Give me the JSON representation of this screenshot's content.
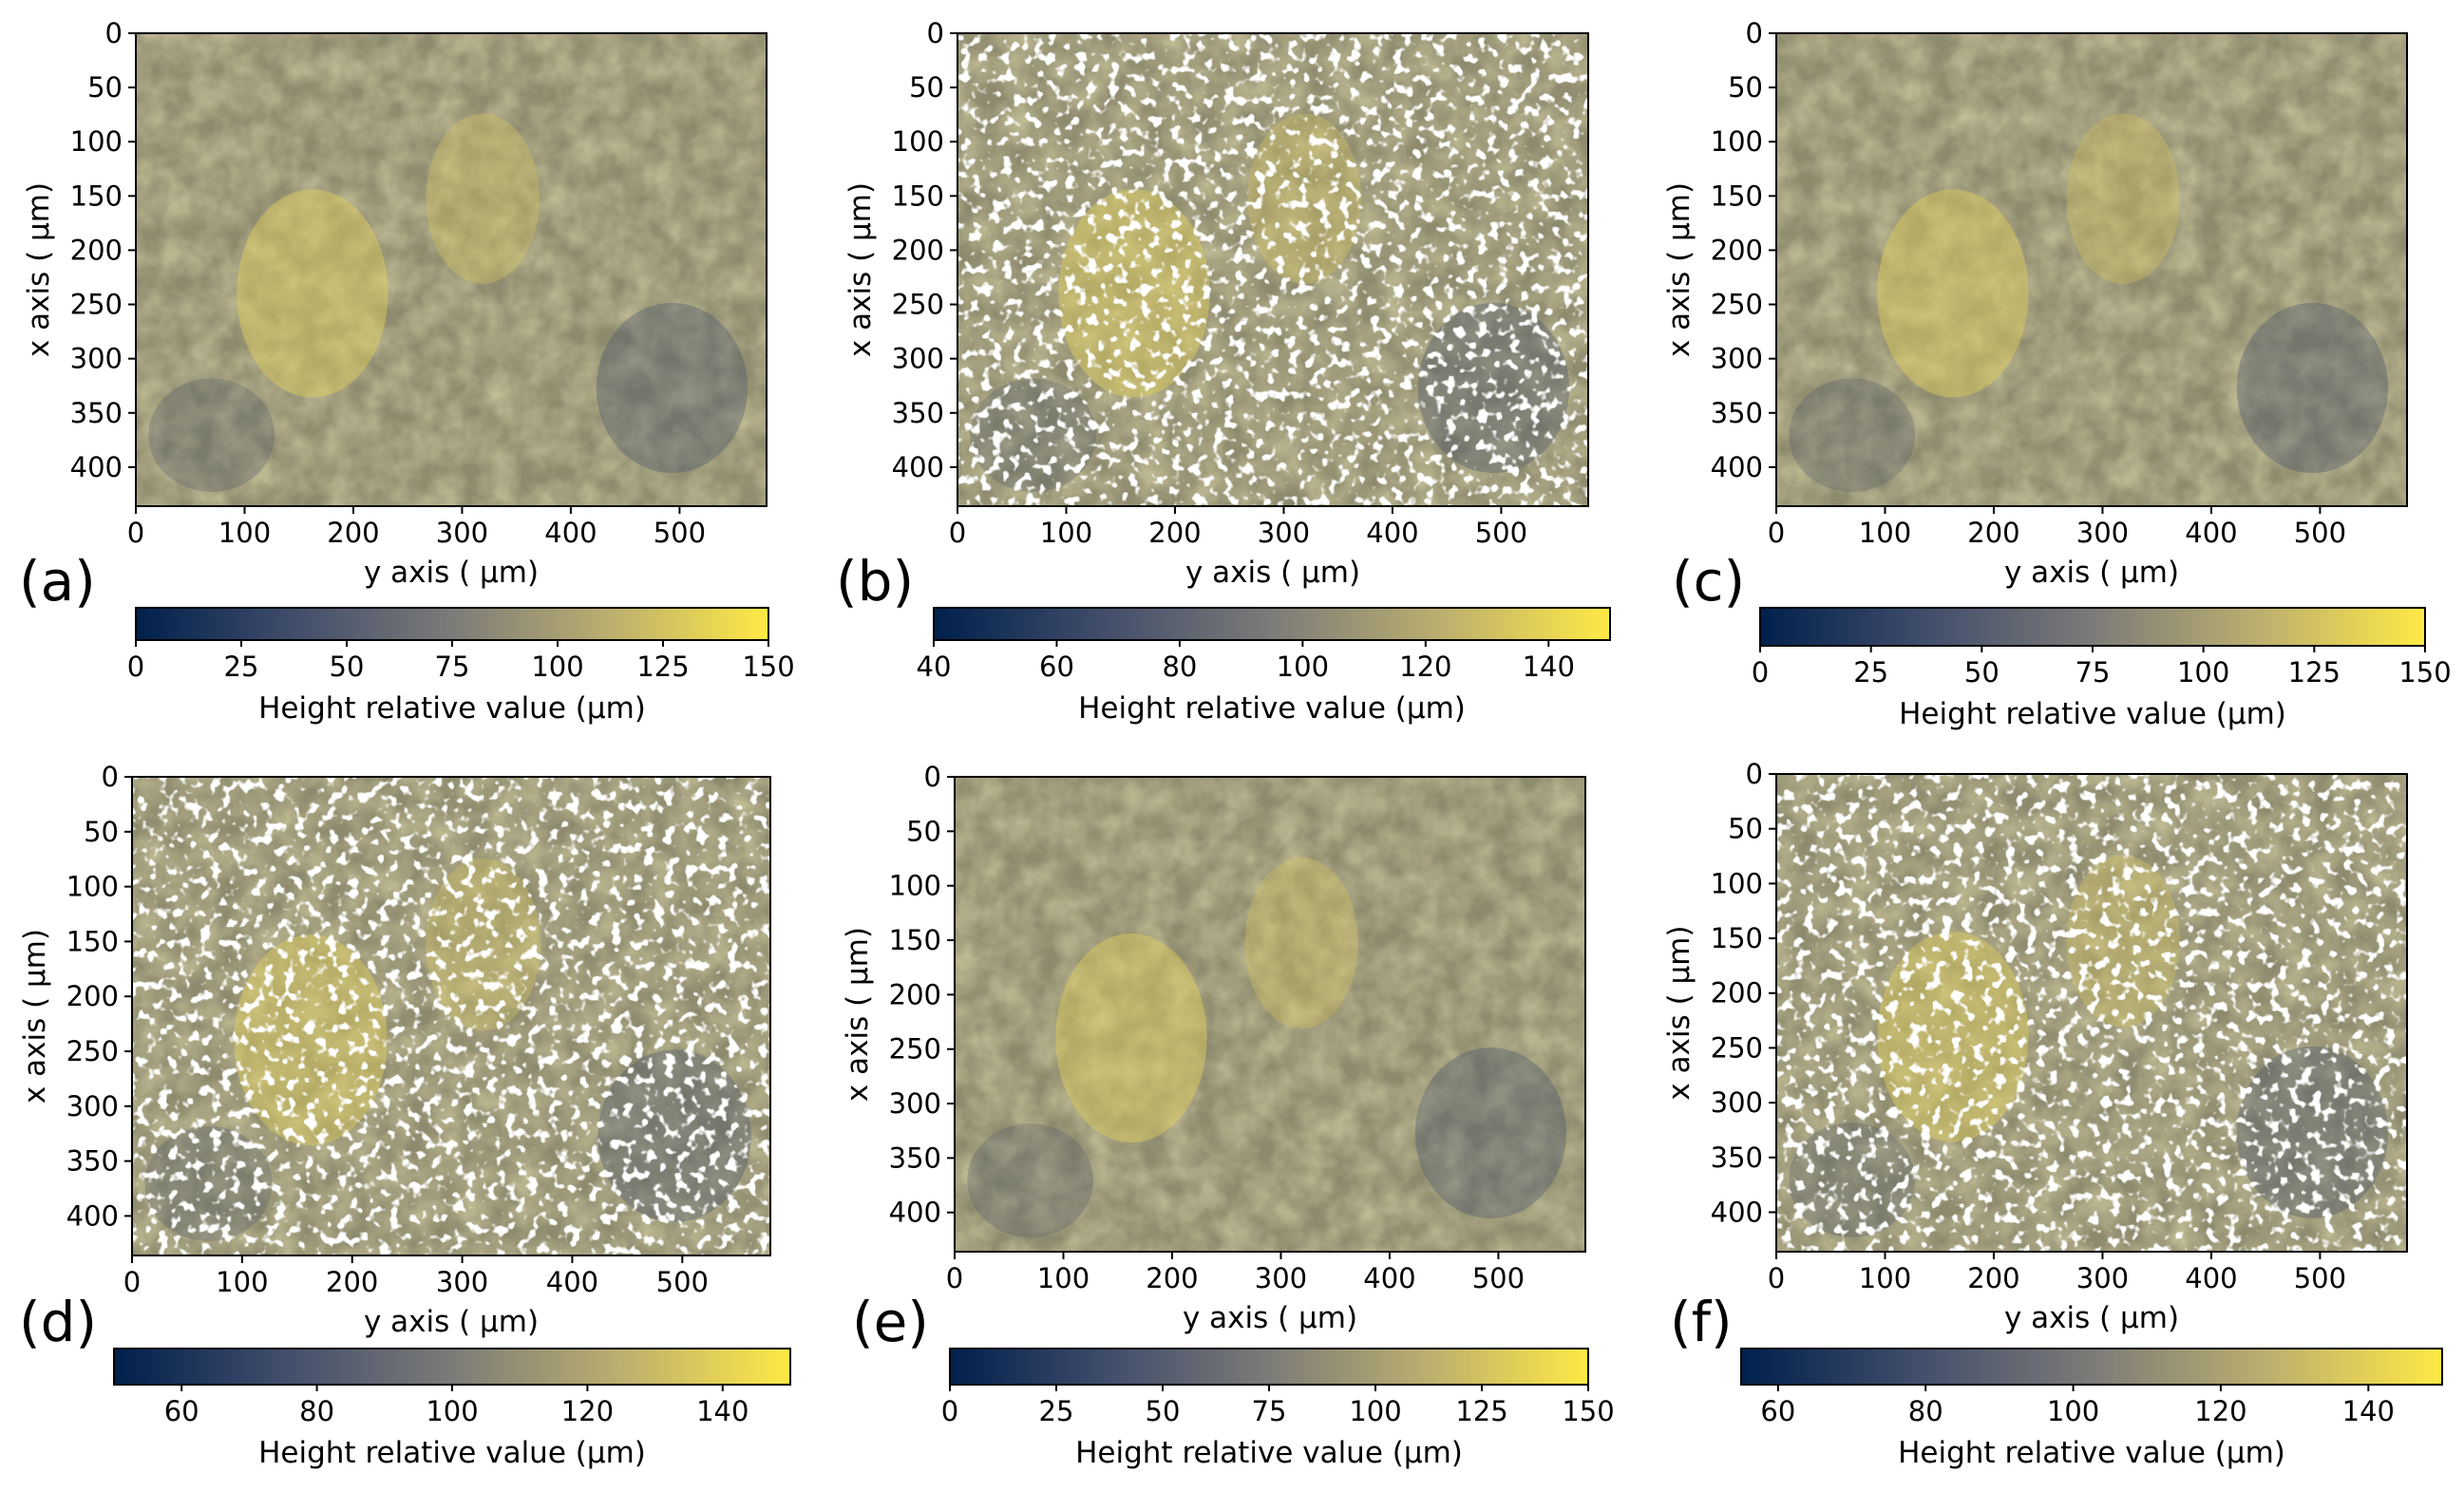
{
  "figure": {
    "colormap": [
      "#00204c",
      "#414d6b",
      "#7c7b78",
      "#bcaf6f",
      "#ffe945"
    ]
  },
  "chart_data": [
    {
      "panel": "(a)",
      "type": "heatmap",
      "xlabel": "y axis ( μm)",
      "ylabel": "x axis ( μm)",
      "xticks": [
        0,
        100,
        200,
        300,
        400,
        500
      ],
      "yticks": [
        0,
        50,
        100,
        150,
        200,
        250,
        300,
        350,
        400
      ],
      "xlim": [
        0,
        580
      ],
      "ylim": [
        436,
        0
      ],
      "missing_data": false,
      "colorbar": {
        "label": "Height relative value (μm)",
        "range": [
          0,
          150
        ],
        "ticks": [
          0,
          25,
          50,
          75,
          100,
          125,
          150
        ]
      }
    },
    {
      "panel": "(b)",
      "type": "heatmap",
      "xlabel": "y axis ( μm)",
      "ylabel": "x axis ( μm)",
      "xticks": [
        0,
        100,
        200,
        300,
        400,
        500
      ],
      "yticks": [
        0,
        50,
        100,
        150,
        200,
        250,
        300,
        350,
        400
      ],
      "xlim": [
        0,
        580
      ],
      "ylim": [
        436,
        0
      ],
      "missing_data": true,
      "colorbar": {
        "label": "Height relative value (μm)",
        "range": [
          40,
          150
        ],
        "ticks": [
          40,
          60,
          80,
          100,
          120,
          140
        ]
      }
    },
    {
      "panel": "(c)",
      "type": "heatmap",
      "xlabel": "y axis ( μm)",
      "ylabel": "x axis ( μm)",
      "xticks": [
        0,
        100,
        200,
        300,
        400,
        500
      ],
      "yticks": [
        0,
        50,
        100,
        150,
        200,
        250,
        300,
        350,
        400
      ],
      "xlim": [
        0,
        580
      ],
      "ylim": [
        436,
        0
      ],
      "missing_data": false,
      "colorbar": {
        "label": "Height relative value (μm)",
        "range": [
          0,
          150
        ],
        "ticks": [
          0,
          25,
          50,
          75,
          100,
          125,
          150
        ]
      }
    },
    {
      "panel": "(d)",
      "type": "heatmap",
      "xlabel": "y axis ( μm)",
      "ylabel": "x axis ( μm)",
      "xticks": [
        0,
        100,
        200,
        300,
        400,
        500
      ],
      "yticks": [
        0,
        50,
        100,
        150,
        200,
        250,
        300,
        350,
        400
      ],
      "xlim": [
        0,
        580
      ],
      "ylim": [
        436,
        0
      ],
      "missing_data": true,
      "colorbar": {
        "label": "Height relative value (μm)",
        "range": [
          50,
          150
        ],
        "ticks": [
          60,
          80,
          100,
          120,
          140
        ]
      }
    },
    {
      "panel": "(e)",
      "type": "heatmap",
      "xlabel": "y axis ( μm)",
      "ylabel": "x axis ( μm)",
      "xticks": [
        0,
        100,
        200,
        300,
        400,
        500
      ],
      "yticks": [
        0,
        50,
        100,
        150,
        200,
        250,
        300,
        350,
        400
      ],
      "xlim": [
        0,
        580
      ],
      "ylim": [
        436,
        0
      ],
      "missing_data": false,
      "colorbar": {
        "label": "Height relative value (μm)",
        "range": [
          0,
          150
        ],
        "ticks": [
          0,
          25,
          50,
          75,
          100,
          125,
          150
        ]
      }
    },
    {
      "panel": "(f)",
      "type": "heatmap",
      "xlabel": "y axis ( μm)",
      "ylabel": "x axis ( μm)",
      "xticks": [
        0,
        100,
        200,
        300,
        400,
        500
      ],
      "yticks": [
        0,
        50,
        100,
        150,
        200,
        250,
        300,
        350,
        400
      ],
      "xlim": [
        0,
        580
      ],
      "ylim": [
        436,
        0
      ],
      "missing_data": true,
      "colorbar": {
        "label": "Height relative value (μm)",
        "range": [
          55,
          150
        ],
        "ticks": [
          60,
          80,
          100,
          120,
          140
        ]
      }
    }
  ]
}
